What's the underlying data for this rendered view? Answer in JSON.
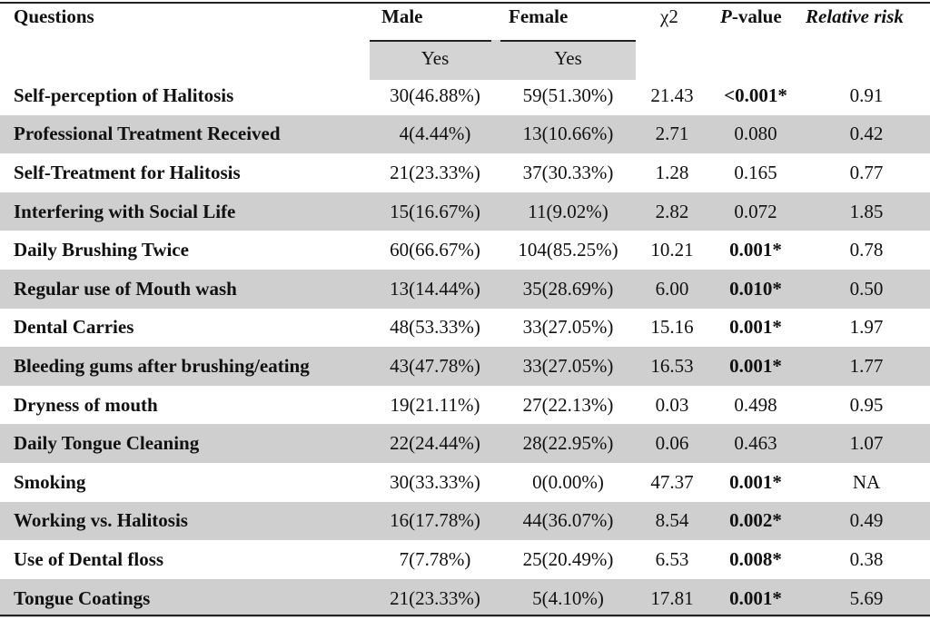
{
  "header": {
    "questions": "Questions",
    "male": "Male",
    "female": "Female",
    "chi2": "χ2",
    "p_value_italic": "P",
    "p_value_rest": "-value",
    "relative_risk": "Relative risk",
    "male_sub": "Yes",
    "female_sub": "Yes"
  },
  "rows": [
    {
      "question": "Self-perception of Halitosis",
      "male": "30(46.88%)",
      "female": "59(51.30%)",
      "chi2": "21.43",
      "p": "<0.001*",
      "p_bold": true,
      "rr": "0.91"
    },
    {
      "question": "Professional Treatment Received",
      "male": "4(4.44%)",
      "female": "13(10.66%)",
      "chi2": "2.71",
      "p": "0.080",
      "p_bold": false,
      "rr": "0.42"
    },
    {
      "question": "Self-Treatment for Halitosis",
      "male": "21(23.33%)",
      "female": "37(30.33%)",
      "chi2": "1.28",
      "p": "0.165",
      "p_bold": false,
      "rr": "0.77"
    },
    {
      "question": "Interfering with Social Life",
      "male": "15(16.67%)",
      "female": "11(9.02%)",
      "chi2": "2.82",
      "p": "0.072",
      "p_bold": false,
      "rr": "1.85"
    },
    {
      "question": "Daily Brushing Twice",
      "male": "60(66.67%)",
      "female": "104(85.25%)",
      "chi2": "10.21",
      "p": "0.001*",
      "p_bold": true,
      "rr": "0.78"
    },
    {
      "question": "Regular use of Mouth wash",
      "male": "13(14.44%)",
      "female": "35(28.69%)",
      "chi2": "6.00",
      "p": "0.010*",
      "p_bold": true,
      "rr": "0.50"
    },
    {
      "question": "Dental Carries",
      "male": "48(53.33%)",
      "female": "33(27.05%)",
      "chi2": "15.16",
      "p": "0.001*",
      "p_bold": true,
      "rr": "1.97"
    },
    {
      "question": "Bleeding gums after brushing/eating",
      "male": "43(47.78%)",
      "female": "33(27.05%)",
      "chi2": "16.53",
      "p": "0.001*",
      "p_bold": true,
      "rr": "1.77"
    },
    {
      "question": "Dryness of mouth",
      "male": "19(21.11%)",
      "female": "27(22.13%)",
      "chi2": "0.03",
      "p": "0.498",
      "p_bold": false,
      "rr": "0.95"
    },
    {
      "question": "Daily Tongue Cleaning",
      "male": "22(24.44%)",
      "female": "28(22.95%)",
      "chi2": "0.06",
      "p": "0.463",
      "p_bold": false,
      "rr": "1.07"
    },
    {
      "question": "Smoking",
      "male": "30(33.33%)",
      "female": "0(0.00%)",
      "chi2": "47.37",
      "p": "0.001*",
      "p_bold": true,
      "rr": "NA"
    },
    {
      "question": "Working vs. Halitosis",
      "male": "16(17.78%)",
      "female": "44(36.07%)",
      "chi2": "8.54",
      "p": "0.002*",
      "p_bold": true,
      "rr": "0.49"
    },
    {
      "question": "Use of Dental floss",
      "male": "7(7.78%)",
      "female": "25(20.49%)",
      "chi2": "6.53",
      "p": "0.008*",
      "p_bold": true,
      "rr": "0.38"
    },
    {
      "question": "Tongue Coatings",
      "male": "21(23.33%)",
      "female": "5(4.10%)",
      "chi2": "17.81",
      "p": "0.001*",
      "p_bold": true,
      "rr": "5.69"
    }
  ],
  "colors": {
    "shade": "#cfcfcf",
    "sub_header_shade": "#d4d4d4",
    "rule": "#222222"
  }
}
